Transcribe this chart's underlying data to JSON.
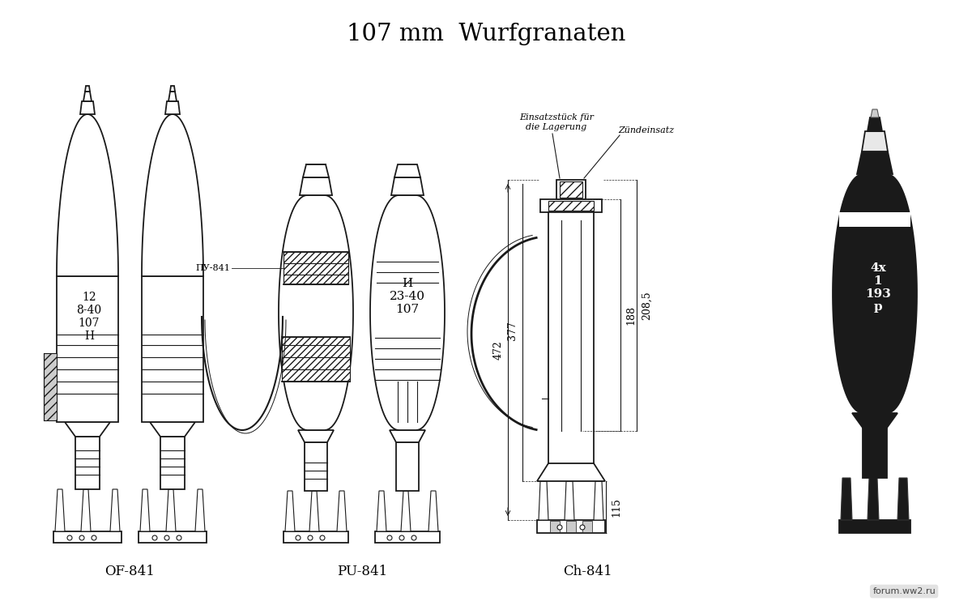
{
  "title": "107 mm  Wurfgranaten",
  "bg_color": "#ffffff",
  "label_of841": "OF-841",
  "label_pu841": "PU-841",
  "label_ch841": "Ch-841",
  "of841_body_label": "12\n8-40\n107\nН",
  "pu841_body_label": "И\n23-40\n107",
  "pu841_side_label": "ПУ-841",
  "ch841_label": "4х\n1\n193\nр",
  "dim_472": "472",
  "dim_377": "377",
  "dim_2085": "208,5",
  "dim_188": "188",
  "dim_115": "115",
  "annotation_einsatz": "Einsatzstück für\ndie Lagerung",
  "annotation_zund": "Zündeinsatz",
  "line_color": "#1a1a1a",
  "dark_fill": "#1a1a1a",
  "watermark_text": "forum.ww2.ru"
}
